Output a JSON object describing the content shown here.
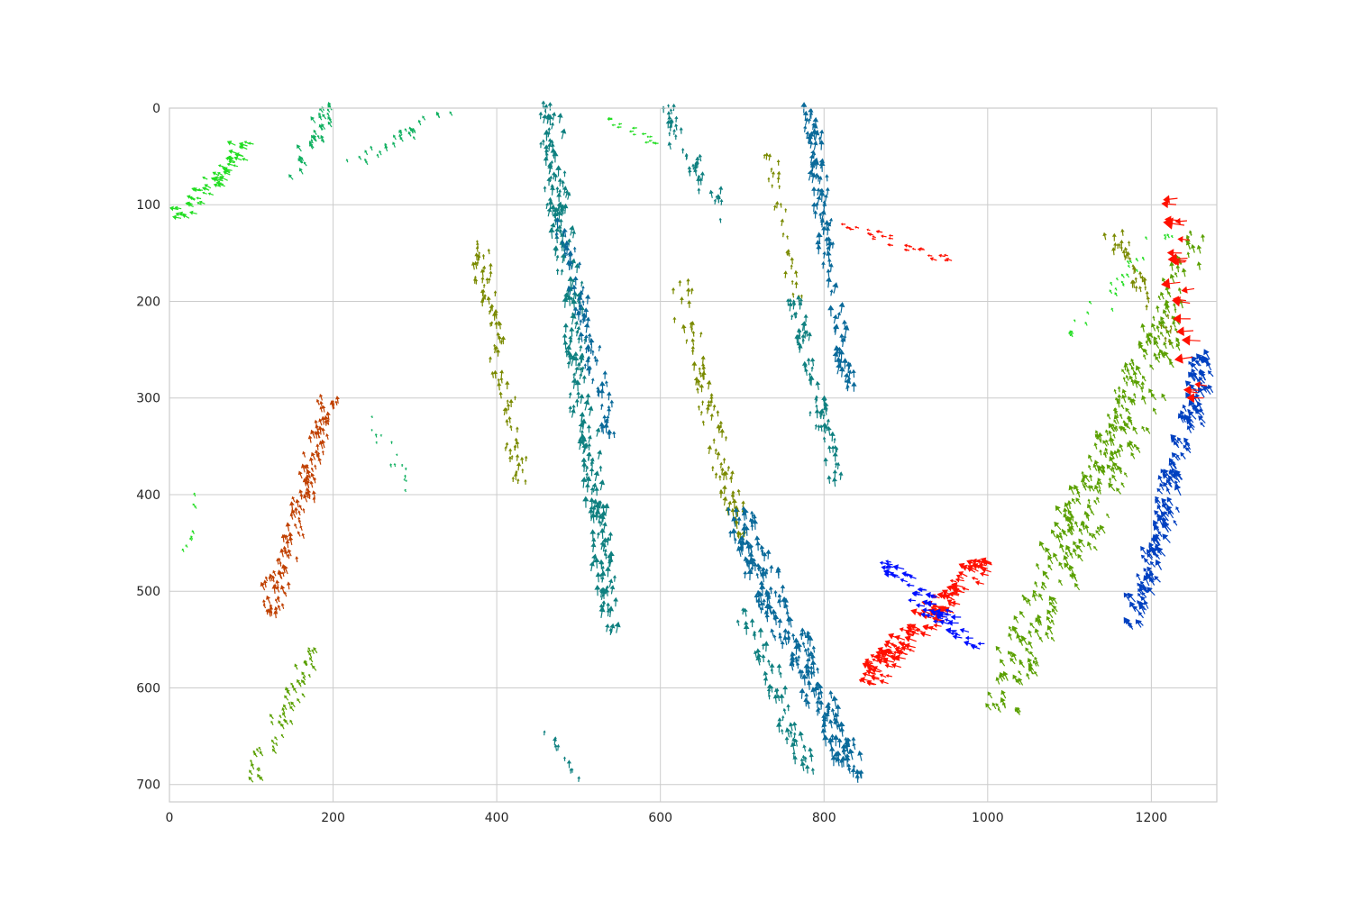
{
  "chart_data": {
    "type": "quiver",
    "title": "",
    "xlabel": "",
    "ylabel": "",
    "xlim": [
      0,
      1280
    ],
    "ylim": [
      718,
      0
    ],
    "y_inverted": true,
    "grid": true,
    "legend": "none",
    "x_ticks": [
      0,
      200,
      400,
      600,
      800,
      1000,
      1200
    ],
    "y_ticks": [
      0,
      100,
      200,
      300,
      400,
      500,
      600,
      700
    ],
    "colors": {
      "bright_green": "#22dd22",
      "emerald": "#10b060",
      "teal": "#0f8080",
      "teal_blue": "#0a6a9a",
      "blue": "#0040c0",
      "pure_blue": "#0010ff",
      "olive": "#7a8a00",
      "yellow_green": "#5aa000",
      "rust": "#c04000",
      "red": "#ff1000"
    },
    "clusters": [
      {
        "x": [
          15,
          100
        ],
        "y": [
          35,
          115
        ],
        "dir": 200,
        "len": 9,
        "n": 60,
        "color": "bright_green"
      },
      {
        "x": [
          150,
          200
        ],
        "y": [
          0,
          80
        ],
        "dir": 240,
        "len": 8,
        "n": 35,
        "color": "emerald"
      },
      {
        "x": [
          220,
          340
        ],
        "y": [
          5,
          60
        ],
        "dir": 245,
        "len": 6,
        "n": 30,
        "color": "emerald"
      },
      {
        "x": [
          120,
          200
        ],
        "y": [
          300,
          530
        ],
        "dir": 255,
        "len": 9,
        "n": 130,
        "color": "rust"
      },
      {
        "x": [
          100,
          180
        ],
        "y": [
          560,
          700
        ],
        "dir": 240,
        "len": 7,
        "n": 60,
        "color": "yellow_green"
      },
      {
        "x": [
          20,
          40
        ],
        "y": [
          400,
          460
        ],
        "dir": 240,
        "len": 5,
        "n": 8,
        "color": "bright_green"
      },
      {
        "x": [
          240,
          300
        ],
        "y": [
          320,
          400
        ],
        "dir": 260,
        "len": 4,
        "n": 15,
        "color": "emerald"
      },
      {
        "x": [
          375,
          430
        ],
        "y": [
          140,
          390
        ],
        "dir": 270,
        "len": 8,
        "n": 90,
        "color": "olive"
      },
      {
        "x": [
          460,
          540
        ],
        "y": [
          0,
          550
        ],
        "dir": 275,
        "len": 11,
        "n": 260,
        "color": "teal"
      },
      {
        "x": [
          480,
          540
        ],
        "y": [
          120,
          350
        ],
        "dir": 270,
        "len": 10,
        "n": 80,
        "color": "teal_blue"
      },
      {
        "x": [
          455,
          500
        ],
        "y": [
          640,
          700
        ],
        "dir": 270,
        "len": 8,
        "n": 10,
        "color": "teal"
      },
      {
        "x": [
          600,
          680
        ],
        "y": [
          0,
          120
        ],
        "dir": 265,
        "len": 8,
        "n": 45,
        "color": "teal"
      },
      {
        "x": [
          540,
          600
        ],
        "y": [
          10,
          40
        ],
        "dir": 180,
        "len": 5,
        "n": 15,
        "color": "bright_green"
      },
      {
        "x": [
          620,
          700
        ],
        "y": [
          180,
          450
        ],
        "dir": 270,
        "len": 9,
        "n": 90,
        "color": "olive"
      },
      {
        "x": [
          730,
          770
        ],
        "y": [
          50,
          200
        ],
        "dir": 270,
        "len": 7,
        "n": 30,
        "color": "olive"
      },
      {
        "x": [
          780,
          830
        ],
        "y": [
          0,
          300
        ],
        "dir": 275,
        "len": 11,
        "n": 110,
        "color": "teal_blue"
      },
      {
        "x": [
          760,
          820
        ],
        "y": [
          200,
          400
        ],
        "dir": 270,
        "len": 10,
        "n": 70,
        "color": "teal"
      },
      {
        "x": [
          690,
          840
        ],
        "y": [
          420,
          700
        ],
        "dir": 265,
        "len": 11,
        "n": 220,
        "color": "teal_blue"
      },
      {
        "x": [
          700,
          780
        ],
        "y": [
          520,
          690
        ],
        "dir": 265,
        "len": 10,
        "n": 60,
        "color": "teal"
      },
      {
        "x": [
          830,
          960
        ],
        "y": [
          120,
          160
        ],
        "dir": 190,
        "len": 7,
        "n": 30,
        "color": "red"
      },
      {
        "x": [
          850,
          1000
        ],
        "y": [
          470,
          600
        ],
        "dir": 200,
        "len": 12,
        "n": 140,
        "color": "red"
      },
      {
        "x": [
          880,
          990
        ],
        "y": [
          470,
          560
        ],
        "dir": 190,
        "len": 11,
        "n": 60,
        "color": "pure_blue"
      },
      {
        "x": [
          1010,
          1230
        ],
        "y": [
          220,
          630
        ],
        "dir": 240,
        "len": 10,
        "n": 230,
        "color": "yellow_green"
      },
      {
        "x": [
          1180,
          1270
        ],
        "y": [
          260,
          540
        ],
        "dir": 235,
        "len": 12,
        "n": 180,
        "color": "blue"
      },
      {
        "x": [
          1100,
          1260
        ],
        "y": [
          130,
          440
        ],
        "dir": 255,
        "len": 9,
        "n": 130,
        "color": "yellow_green"
      },
      {
        "x": [
          1150,
          1230
        ],
        "y": [
          130,
          250
        ],
        "dir": 265,
        "len": 8,
        "n": 40,
        "color": "olive"
      },
      {
        "x": [
          1100,
          1220
        ],
        "y": [
          130,
          240
        ],
        "dir": 240,
        "len": 5,
        "n": 30,
        "color": "bright_green"
      },
      {
        "x": [
          1230,
          1265
        ],
        "y": [
          90,
          300
        ],
        "dir": 180,
        "len": 20,
        "n": 22,
        "color": "red"
      }
    ]
  }
}
